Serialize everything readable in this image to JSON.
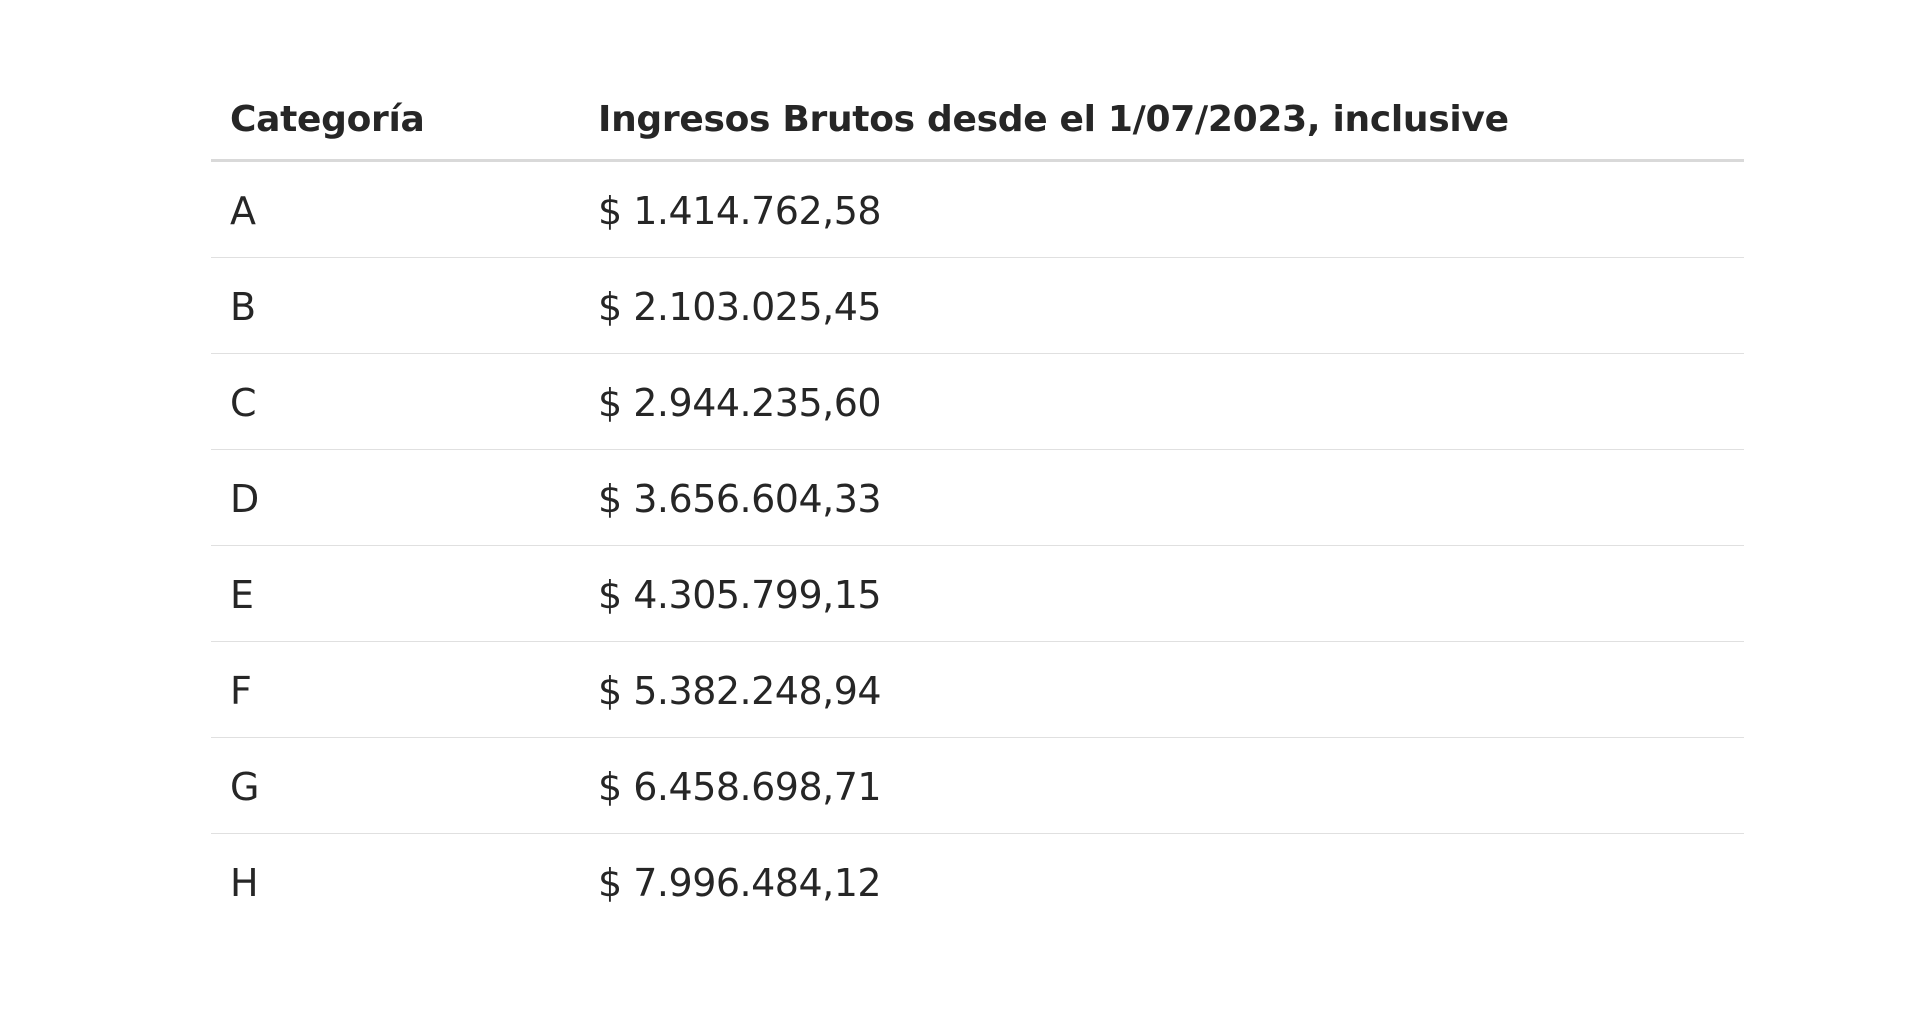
{
  "table": {
    "headers": {
      "category": "Categoría",
      "income": "Ingresos Brutos desde el 1/07/2023, inclusive"
    },
    "rows": [
      {
        "category": "A",
        "income": "$ 1.414.762,58"
      },
      {
        "category": "B",
        "income": "$ 2.103.025,45"
      },
      {
        "category": "C",
        "income": "$ 2.944.235,60"
      },
      {
        "category": "D",
        "income": "$ 3.656.604,33"
      },
      {
        "category": "E",
        "income": "$ 4.305.799,15"
      },
      {
        "category": "F",
        "income": "$ 5.382.248,94"
      },
      {
        "category": "G",
        "income": "$ 6.458.698,71"
      },
      {
        "category": "H",
        "income": "$ 7.996.484,12"
      }
    ]
  }
}
